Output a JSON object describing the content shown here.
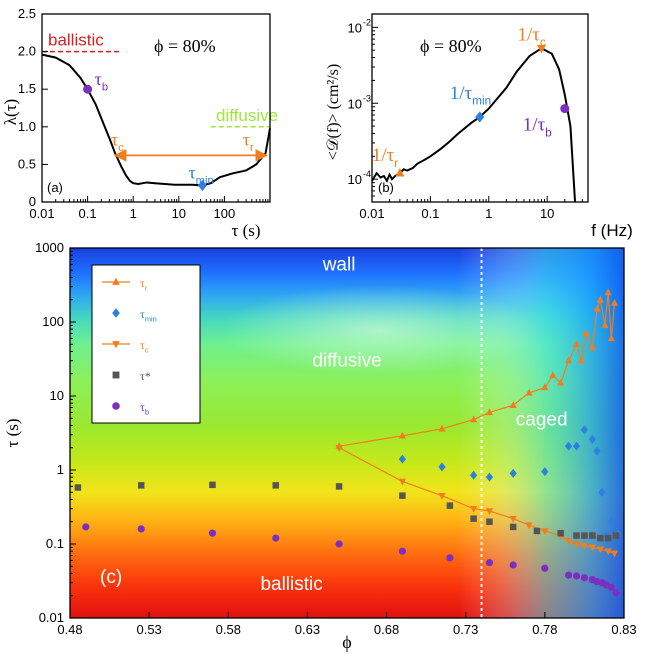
{
  "colors": {
    "orange": "#f07e1e",
    "blue": "#2b80e0",
    "gray": "#555555",
    "purple": "#7a2fc0",
    "red": "#d81f1f",
    "lime": "#9ce63c",
    "black": "#000000"
  },
  "chart_data": [
    {
      "id": "a",
      "type": "line",
      "panel_label": "(a)",
      "xlabel": "τ (s)",
      "ylabel": "λ(τ)",
      "xscale": "log",
      "xlim": [
        0.01,
        1000
      ],
      "ylim": [
        0,
        2.5
      ],
      "xticks": [
        0.01,
        0.1,
        1,
        10,
        100
      ],
      "xtick_labels": [
        "0.01",
        "0.1",
        "1",
        "10",
        "100"
      ],
      "yticks": [
        0,
        0.5,
        1,
        1.5,
        2,
        2.5
      ],
      "ytick_labels": [
        "0",
        "0.5",
        "1.0",
        "1.5",
        "2.0",
        "2.5"
      ],
      "series": [
        {
          "x": [
            0.01,
            0.02,
            0.04,
            0.07,
            0.1,
            0.15,
            0.22,
            0.3,
            0.4,
            0.55,
            0.7,
            0.85,
            1.0,
            1.3,
            2,
            3,
            5,
            8,
            12,
            20,
            33,
            50,
            80,
            150,
            300,
            500,
            800,
            1000
          ],
          "y": [
            1.96,
            1.92,
            1.82,
            1.65,
            1.5,
            1.3,
            1.05,
            0.85,
            0.65,
            0.47,
            0.35,
            0.28,
            0.25,
            0.24,
            0.26,
            0.25,
            0.24,
            0.23,
            0.23,
            0.23,
            0.22,
            0.25,
            0.33,
            0.38,
            0.42,
            0.5,
            0.65,
            0.98
          ]
        }
      ],
      "reference_lines": [
        {
          "label": "ballistic",
          "y": 2.0,
          "x_range": [
            0.01,
            0.5
          ],
          "color": "#d81f1f"
        },
        {
          "label": "diffusive",
          "y": 1.0,
          "x_range": [
            50,
            1000
          ],
          "color": "#9ce63c"
        }
      ],
      "arrow": {
        "x_from": 0.4,
        "x_to": 850,
        "y": 0.62
      },
      "markers": [
        {
          "label": "τ",
          "sub": "b",
          "x": 0.1,
          "y": 1.5,
          "color": "#7a2fc0",
          "shape": "circle"
        },
        {
          "label": "τ",
          "sub": "min",
          "x": 33,
          "y": 0.22,
          "color": "#2b80e0",
          "shape": "diamond"
        },
        {
          "label": "τ",
          "sub": "c",
          "x": 0.4,
          "y": 0.62,
          "color": "#f07e1e",
          "shape": "none"
        },
        {
          "label": "τ",
          "sub": "r",
          "x": 850,
          "y": 0.62,
          "color": "#f07e1e",
          "shape": "none"
        }
      ],
      "annotation": "ϕ = 80%"
    },
    {
      "id": "b",
      "type": "line",
      "panel_label": "(b)",
      "xlabel": "f (Hz)",
      "ylabel": "<𝒟(f)> (cm²/s)",
      "xscale": "log",
      "yscale": "log",
      "xlim": [
        0.01,
        50
      ],
      "ylim": [
        5e-05,
        0.015
      ],
      "xticks": [
        0.01,
        0.1,
        1,
        10
      ],
      "xtick_labels": [
        "0.01",
        "0.1",
        "1",
        "10"
      ],
      "yticks": [
        0.0001,
        0.001,
        0.01
      ],
      "ytick_labels": [
        "10",
        "10",
        "10"
      ],
      "ytick_exponents": [
        "-4",
        "-3",
        "-2"
      ],
      "series": [
        {
          "x": [
            0.01,
            0.012,
            0.014,
            0.016,
            0.018,
            0.02,
            0.022,
            0.025,
            0.03,
            0.035,
            0.04,
            0.05,
            0.06,
            0.08,
            0.1,
            0.15,
            0.2,
            0.3,
            0.5,
            0.7,
            1,
            2,
            3,
            5,
            8,
            12,
            16,
            20,
            25,
            28,
            30
          ],
          "y": [
            9.5e-05,
            0.00012,
            0.000105,
            0.00011,
            9.5e-05,
            0.000115,
            0.0001,
            0.00011,
            0.00012,
            0.000135,
            0.00013,
            0.00014,
            0.00016,
            0.00018,
            0.0002,
            0.00025,
            0.0003,
            0.0004,
            0.00055,
            0.00066,
            0.00085,
            0.0016,
            0.0026,
            0.0042,
            0.0053,
            0.0045,
            0.0028,
            0.0013,
            0.0005,
            0.00012,
            4e-05
          ]
        }
      ],
      "markers": [
        {
          "label": "1/τ",
          "sub": "r",
          "x": 0.03,
          "y": 0.00012,
          "color": "#f07e1e",
          "shape": "triangle-up"
        },
        {
          "label": "1/τ",
          "sub": "min",
          "x": 0.7,
          "y": 0.00066,
          "color": "#2b80e0",
          "shape": "diamond"
        },
        {
          "label": "1/τ",
          "sub": "c",
          "x": 8,
          "y": 0.0053,
          "color": "#f07e1e",
          "shape": "triangle-down"
        },
        {
          "label": "1/τ",
          "sub": "b",
          "x": 20,
          "y": 0.00085,
          "color": "#7a2fc0",
          "shape": "circle"
        }
      ],
      "annotation": "ϕ = 80%"
    },
    {
      "id": "c",
      "type": "heatmap",
      "panel_label": "(c)",
      "xlabel": "ϕ",
      "ylabel": "τ (s)",
      "yscale": "log",
      "xlim": [
        0.48,
        0.83
      ],
      "ylim": [
        0.01,
        1000
      ],
      "xticks": [
        0.48,
        0.53,
        0.58,
        0.63,
        0.68,
        0.73,
        0.78,
        0.83
      ],
      "xtick_labels": [
        "0.48",
        "0.53",
        "0.58",
        "0.63",
        "0.68",
        "0.73",
        "0.78",
        "0.83"
      ],
      "yticks": [
        0.01,
        0.1,
        1,
        10,
        100,
        1000
      ],
      "ytick_labels": [
        "0.01",
        "0.1",
        "1",
        "10",
        "100",
        "1000"
      ],
      "vline": {
        "x": 0.74
      },
      "region_labels": [
        {
          "text": "wall",
          "x": 0.65,
          "y": 500
        },
        {
          "text": "diffusive",
          "x": 0.655,
          "y": 25
        },
        {
          "text": "caged",
          "x": 0.778,
          "y": 4
        },
        {
          "text": "ballistic",
          "x": 0.62,
          "y": 0.024
        }
      ],
      "legend": [
        {
          "label": "τ",
          "sub": "r",
          "shape": "triangle-up",
          "color": "#f07e1e",
          "line": true
        },
        {
          "label": "τ",
          "sub": "min",
          "shape": "diamond",
          "color": "#2b80e0",
          "line": false
        },
        {
          "label": "τ",
          "sub": "c",
          "shape": "triangle-down",
          "color": "#f07e1e",
          "line": true
        },
        {
          "label": "τ*",
          "sub": "",
          "shape": "square",
          "color": "#555555",
          "line": false
        },
        {
          "label": "τ",
          "sub": "b",
          "shape": "circle",
          "color": "#7a2fc0",
          "line": false
        }
      ],
      "series": [
        {
          "name": "τr",
          "shape": "triangle-up",
          "color": "#f07e1e",
          "line": true,
          "x": [
            0.65,
            0.69,
            0.715,
            0.735,
            0.745,
            0.76,
            0.77,
            0.78,
            0.785,
            0.79,
            0.795,
            0.8,
            0.803,
            0.806,
            0.81,
            0.813,
            0.815,
            0.818,
            0.82,
            0.822,
            0.824
          ],
          "y": [
            2.1,
            2.9,
            3.6,
            4.8,
            6,
            7.5,
            11,
            13,
            19,
            15,
            30,
            50,
            30,
            70,
            45,
            150,
            200,
            90,
            250,
            60,
            180
          ]
        },
        {
          "name": "τmin",
          "shape": "diamond",
          "color": "#2b80e0",
          "line": false,
          "x": [
            0.69,
            0.715,
            0.735,
            0.745,
            0.76,
            0.78,
            0.795,
            0.8,
            0.805,
            0.81,
            0.813,
            0.816,
            0.819,
            0.822,
            0.826
          ],
          "y": [
            1.4,
            1.1,
            0.85,
            0.8,
            0.9,
            0.95,
            2.1,
            2.1,
            3.5,
            2.6,
            1.8,
            0.5,
            0.13,
            0.2,
            0.14
          ]
        },
        {
          "name": "τc",
          "shape": "triangle-down",
          "color": "#f07e1e",
          "line": true,
          "x": [
            0.65,
            0.69,
            0.715,
            0.735,
            0.745,
            0.76,
            0.77,
            0.78,
            0.79,
            0.795,
            0.8,
            0.805,
            0.81,
            0.815,
            0.82,
            0.824
          ],
          "y": [
            2.0,
            0.7,
            0.45,
            0.3,
            0.28,
            0.22,
            0.18,
            0.15,
            0.13,
            0.11,
            0.1,
            0.095,
            0.09,
            0.085,
            0.08,
            0.075
          ]
        },
        {
          "name": "τ*",
          "shape": "square",
          "color": "#555555",
          "line": false,
          "x": [
            0.485,
            0.525,
            0.57,
            0.61,
            0.65,
            0.69,
            0.72,
            0.735,
            0.745,
            0.76,
            0.775,
            0.79,
            0.8,
            0.805,
            0.81,
            0.815,
            0.82,
            0.825
          ],
          "y": [
            0.58,
            0.62,
            0.63,
            0.62,
            0.6,
            0.45,
            0.33,
            0.22,
            0.2,
            0.17,
            0.15,
            0.14,
            0.13,
            0.13,
            0.13,
            0.12,
            0.12,
            0.13
          ]
        },
        {
          "name": "τb",
          "shape": "circle",
          "color": "#7a2fc0",
          "line": false,
          "x": [
            0.49,
            0.525,
            0.57,
            0.61,
            0.65,
            0.69,
            0.72,
            0.745,
            0.76,
            0.78,
            0.795,
            0.8,
            0.805,
            0.81,
            0.813,
            0.816,
            0.819,
            0.822,
            0.825
          ],
          "y": [
            0.17,
            0.16,
            0.14,
            0.12,
            0.1,
            0.08,
            0.065,
            0.056,
            0.052,
            0.047,
            0.038,
            0.037,
            0.035,
            0.033,
            0.031,
            0.03,
            0.028,
            0.026,
            0.022
          ]
        }
      ]
    }
  ]
}
